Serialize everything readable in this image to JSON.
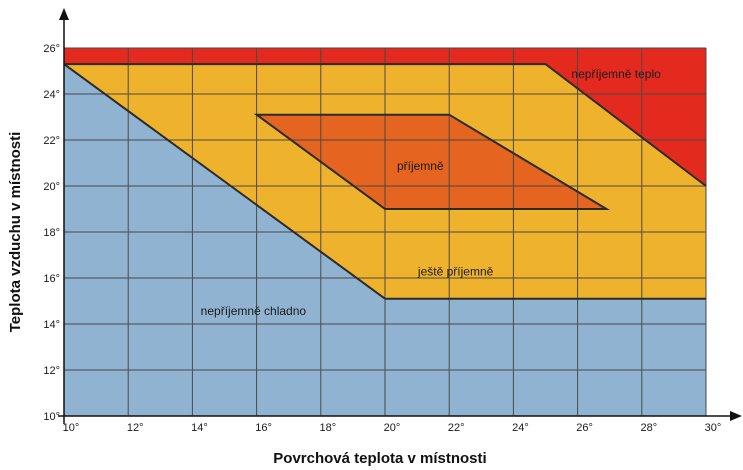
{
  "chart_data": {
    "type": "area",
    "title": "",
    "xlabel": "Povrchová teplota v místnosti",
    "ylabel": "Teplota vzduchu v místnosti",
    "xlim": [
      10,
      30
    ],
    "ylim": [
      10,
      26
    ],
    "x_ticks": [
      10,
      12,
      14,
      16,
      18,
      20,
      22,
      24,
      26,
      28,
      30
    ],
    "y_ticks": [
      10,
      12,
      14,
      16,
      18,
      20,
      22,
      24,
      26
    ],
    "x_tick_labels": [
      "10°",
      "12°",
      "14°",
      "16°",
      "18°",
      "20°",
      "22°",
      "24°",
      "26°",
      "28°",
      "30°"
    ],
    "y_tick_labels": [
      "10°",
      "12°",
      "14°",
      "16°",
      "18°",
      "20°",
      "22°",
      "24°",
      "26°"
    ],
    "grid": true,
    "regions": [
      {
        "name": "nepříjemně chladno",
        "color": "#8FB3D0",
        "polygon": [
          [
            10,
            10
          ],
          [
            30,
            10
          ],
          [
            30,
            15.1
          ],
          [
            20,
            15.1
          ],
          [
            10,
            25.3
          ]
        ],
        "label_pos": [
          15.9,
          14.4
        ]
      },
      {
        "name": "ještě příjemně",
        "color": "#EFB22C",
        "polygon": [
          [
            10,
            25.3
          ],
          [
            25,
            25.3
          ],
          [
            30,
            20
          ],
          [
            30,
            15.1
          ],
          [
            20,
            15.1
          ]
        ],
        "label_pos": [
          22.2,
          16.1
        ]
      },
      {
        "name": "nepříjemně teplo",
        "color": "#E42A1E",
        "polygon": [
          [
            10,
            25.3
          ],
          [
            10,
            26
          ],
          [
            30,
            26
          ],
          [
            30,
            20
          ],
          [
            25,
            25.3
          ]
        ],
        "label_pos": [
          27.2,
          24.7
        ]
      },
      {
        "name": "příjemně",
        "color": "#E5641F",
        "polygon": [
          [
            16,
            23.1
          ],
          [
            22,
            23.1
          ],
          [
            26.9,
            19
          ],
          [
            20,
            19
          ]
        ],
        "label_pos": [
          21.1,
          20.7
        ]
      }
    ]
  },
  "colors": {
    "gradient_top": "#E42A1E",
    "gradient_mid": "#EB7A22",
    "gradient_bottom": "#F2C431",
    "cold": "#8FB3D0",
    "hot": "#E42A1E",
    "comfort": "#E5641F",
    "grid": "#4a4a4a"
  }
}
